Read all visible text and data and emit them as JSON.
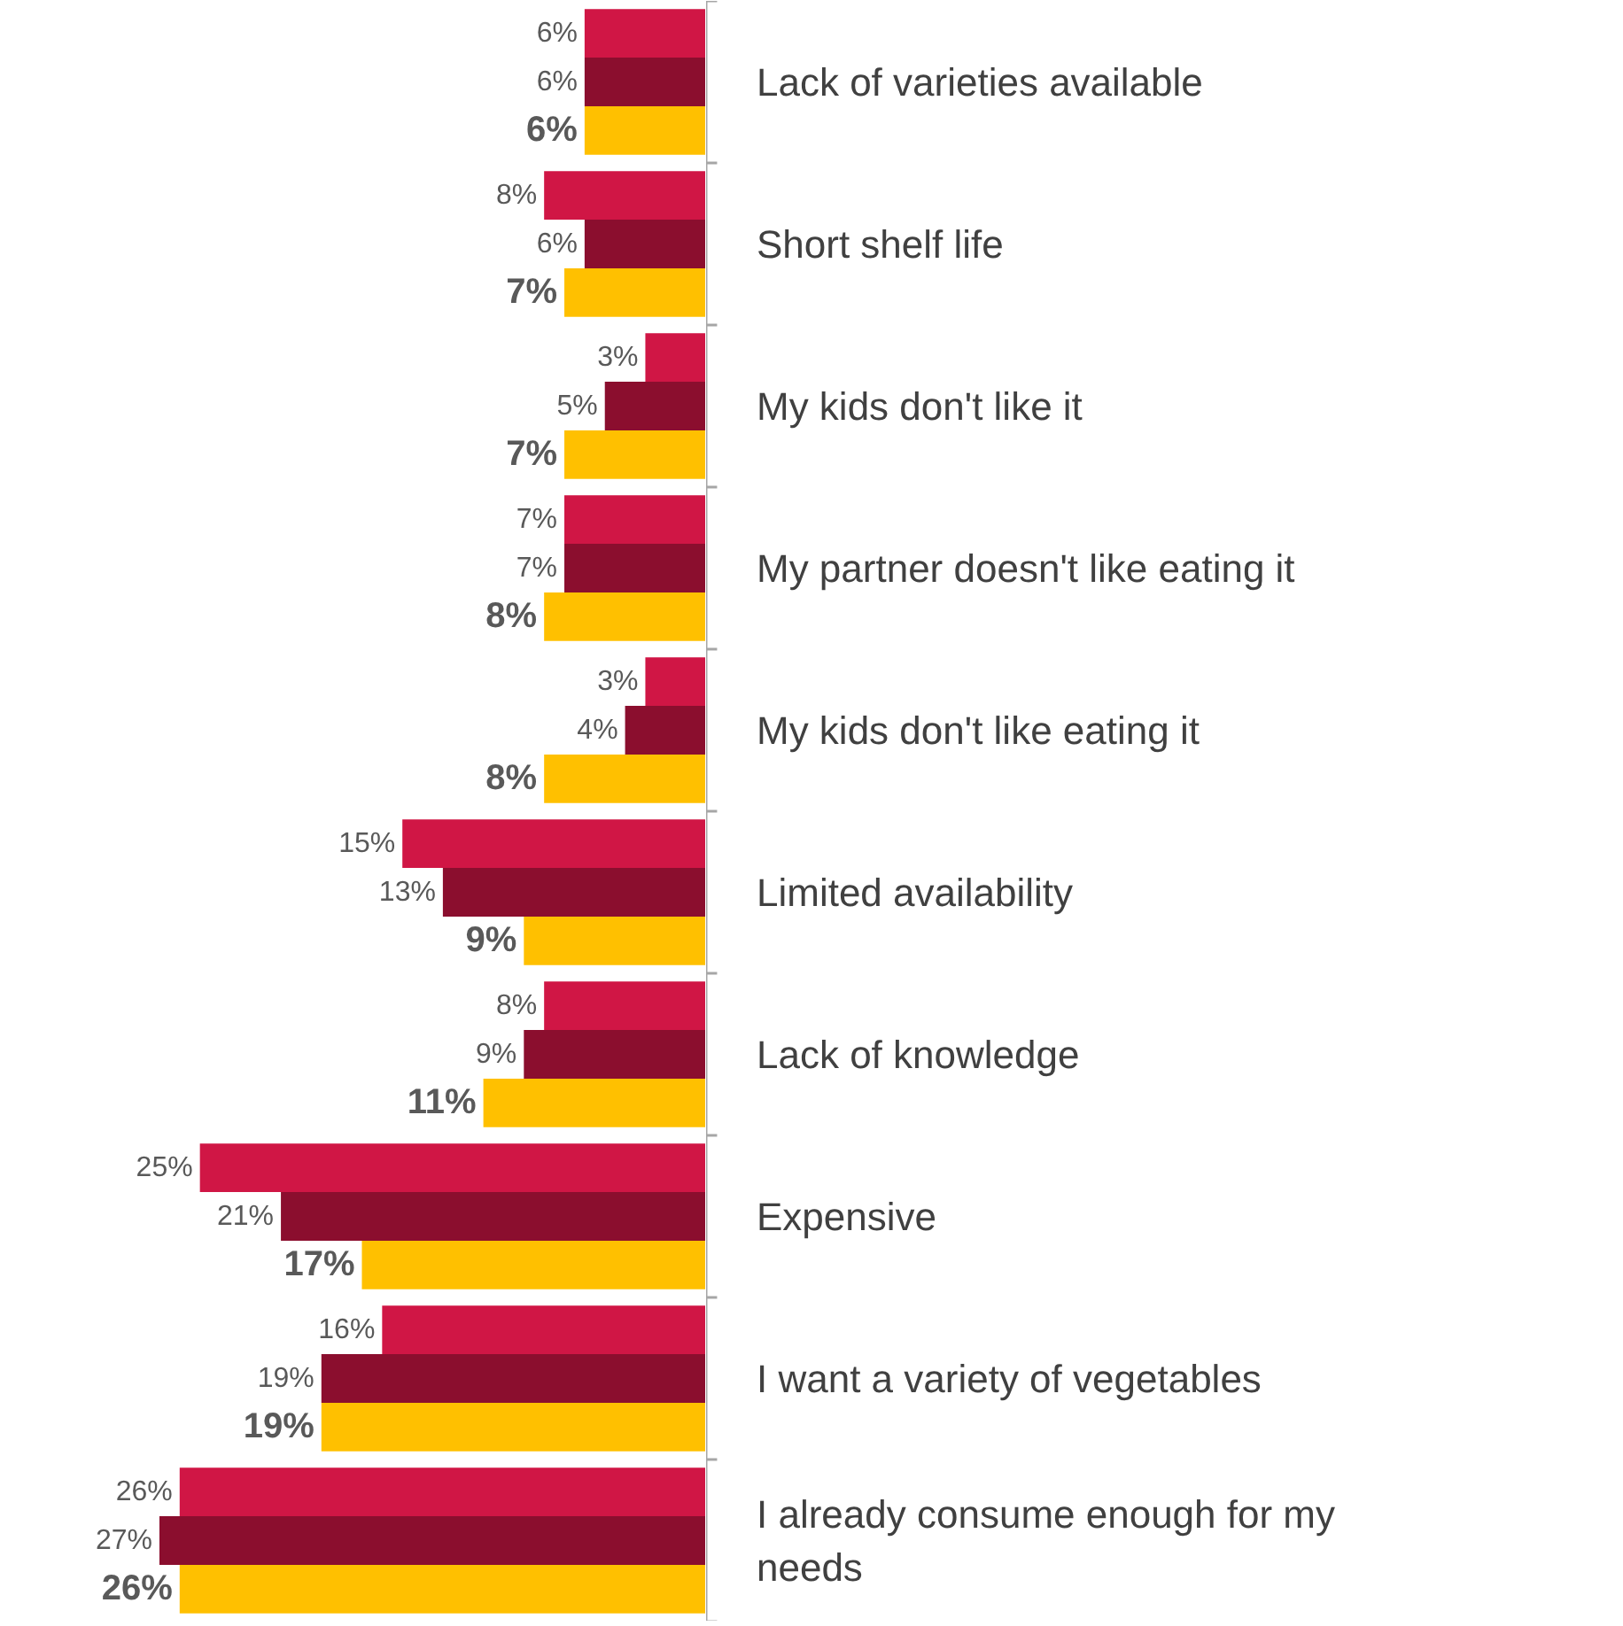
{
  "chart_data": {
    "type": "bar",
    "orientation": "horizontal",
    "categories": [
      "Lack of varieties available",
      "Short shelf life",
      "My kids don't like it",
      "My partner doesn't like eating it",
      "My kids don't like eating it",
      "Limited availability",
      "Lack of knowledge",
      "Expensive",
      "I want a variety of vegetables",
      "I already consume enough for my needs"
    ],
    "series": [
      {
        "color": "#d01645",
        "values": [
          6,
          8,
          3,
          7,
          3,
          15,
          8,
          25,
          16,
          26
        ],
        "value_labels": [
          "6%",
          "8%",
          "3%",
          "7%",
          "3%",
          "15%",
          "8%",
          "25%",
          "16%",
          "26%"
        ]
      },
      {
        "color": "#8b0e2e",
        "values": [
          6,
          6,
          5,
          7,
          4,
          13,
          9,
          21,
          19,
          27
        ],
        "value_labels": [
          "6%",
          "6%",
          "5%",
          "7%",
          "4%",
          "13%",
          "9%",
          "21%",
          "19%",
          "27%"
        ]
      },
      {
        "color": "#ffc000",
        "values": [
          6,
          7,
          7,
          8,
          8,
          9,
          11,
          17,
          19,
          26
        ],
        "value_labels": [
          "6%",
          "7%",
          "7%",
          "8%",
          "8%",
          "9%",
          "11%",
          "17%",
          "19%",
          "26%"
        ]
      }
    ],
    "grid": false,
    "tick_labels": "y"
  }
}
